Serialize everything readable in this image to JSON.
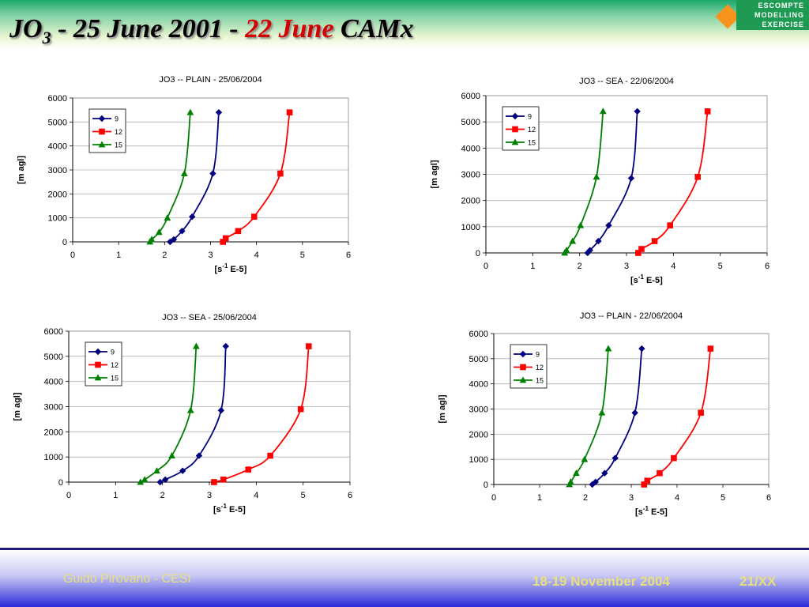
{
  "header": {
    "title_part1": "JO",
    "title_sub": "3",
    "title_part2": " - 25 June 2001  - ",
    "title_red": "22 June",
    "title_part3": " CAMx",
    "logo_lines": [
      "ESCOMPTE",
      "MODELLING",
      "EXERCISE"
    ]
  },
  "footer": {
    "author": "Guido Pirovano - CESI",
    "date": "18-19 November 2004",
    "page": "21/XX"
  },
  "colors": {
    "s9": "#00007f",
    "s12": "#ff0000",
    "s15": "#008000"
  },
  "chart_data": [
    {
      "type": "line",
      "title": "JO3  --  PLAIN  - 25/06/2004",
      "xlabel": "[s-1 E-5]",
      "ylabel": "[m agl]",
      "xlim": [
        0,
        6
      ],
      "ylim": [
        0,
        6000
      ],
      "xticks": [
        "0",
        "1",
        "2",
        "3",
        "4",
        "5",
        "6"
      ],
      "yticks": [
        "0",
        "1000",
        "2000",
        "3000",
        "4000",
        "5000",
        "6000"
      ],
      "grid": "horizontal",
      "legend": "top-left",
      "series": [
        {
          "name": "9",
          "marker": "diamond",
          "points": [
            [
              2.12,
              0
            ],
            [
              2.2,
              100
            ],
            [
              2.38,
              450
            ],
            [
              2.6,
              1050
            ],
            [
              3.05,
              2850
            ],
            [
              3.18,
              5400
            ]
          ]
        },
        {
          "name": "12",
          "marker": "square",
          "points": [
            [
              3.27,
              0
            ],
            [
              3.33,
              150
            ],
            [
              3.6,
              450
            ],
            [
              3.95,
              1050
            ],
            [
              4.52,
              2850
            ],
            [
              4.72,
              5400
            ]
          ]
        },
        {
          "name": "15",
          "marker": "triangle",
          "points": [
            [
              1.68,
              0
            ],
            [
              1.72,
              100
            ],
            [
              1.88,
              400
            ],
            [
              2.06,
              1000
            ],
            [
              2.43,
              2850
            ],
            [
              2.56,
              5400
            ]
          ]
        }
      ]
    },
    {
      "type": "line",
      "title": "JO3  --  SEA  - 22/06/2004",
      "xlabel": "[s-1 E-5]",
      "ylabel": "[m agl]",
      "xlim": [
        0,
        6
      ],
      "ylim": [
        0,
        6000
      ],
      "xticks": [
        "0",
        "1",
        "2",
        "3",
        "4",
        "5",
        "6"
      ],
      "yticks": [
        "0",
        "1000",
        "2000",
        "3000",
        "4000",
        "5000",
        "6000"
      ],
      "grid": "horizontal",
      "legend": "top-left",
      "series": [
        {
          "name": "9",
          "marker": "diamond",
          "points": [
            [
              2.17,
              0
            ],
            [
              2.22,
              100
            ],
            [
              2.4,
              450
            ],
            [
              2.62,
              1050
            ],
            [
              3.1,
              2850
            ],
            [
              3.23,
              5400
            ]
          ]
        },
        {
          "name": "12",
          "marker": "square",
          "points": [
            [
              3.25,
              0
            ],
            [
              3.32,
              150
            ],
            [
              3.6,
              450
            ],
            [
              3.93,
              1050
            ],
            [
              4.52,
              2900
            ],
            [
              4.73,
              5400
            ]
          ]
        },
        {
          "name": "15",
          "marker": "triangle",
          "points": [
            [
              1.68,
              0
            ],
            [
              1.72,
              100
            ],
            [
              1.85,
              450
            ],
            [
              2.02,
              1050
            ],
            [
              2.36,
              2900
            ],
            [
              2.5,
              5400
            ]
          ]
        }
      ]
    },
    {
      "type": "line",
      "title": "JO3  --  SEA  - 25/06/2004",
      "xlabel": "[s-1 E-5]",
      "ylabel": "[m agl]",
      "xlim": [
        0,
        6
      ],
      "ylim": [
        0,
        6000
      ],
      "xticks": [
        "0",
        "1",
        "2",
        "3",
        "4",
        "5",
        "6"
      ],
      "yticks": [
        "0",
        "1000",
        "2000",
        "3000",
        "4000",
        "5000",
        "6000"
      ],
      "grid": "horizontal",
      "legend": "top-left",
      "series": [
        {
          "name": "9",
          "marker": "diamond",
          "points": [
            [
              1.95,
              0
            ],
            [
              2.06,
              100
            ],
            [
              2.43,
              450
            ],
            [
              2.78,
              1050
            ],
            [
              3.25,
              2850
            ],
            [
              3.35,
              5400
            ]
          ]
        },
        {
          "name": "12",
          "marker": "square",
          "points": [
            [
              3.1,
              0
            ],
            [
              3.3,
              100
            ],
            [
              3.83,
              500
            ],
            [
              4.3,
              1050
            ],
            [
              4.95,
              2900
            ],
            [
              5.12,
              5400
            ]
          ]
        },
        {
          "name": "15",
          "marker": "triangle",
          "points": [
            [
              1.53,
              0
            ],
            [
              1.62,
              100
            ],
            [
              1.88,
              450
            ],
            [
              2.2,
              1050
            ],
            [
              2.6,
              2850
            ],
            [
              2.72,
              5400
            ]
          ]
        }
      ]
    },
    {
      "type": "line",
      "title": "JO3  --  PLAIN  - 22/06/2004",
      "xlabel": "[s-1 E-5]",
      "ylabel": "[m agl]",
      "xlim": [
        0,
        6
      ],
      "ylim": [
        0,
        6000
      ],
      "xticks": [
        "0",
        "1",
        "2",
        "3",
        "4",
        "5",
        "6"
      ],
      "yticks": [
        "0",
        "1000",
        "2000",
        "3000",
        "4000",
        "5000",
        "6000"
      ],
      "grid": "horizontal",
      "legend": "top-left",
      "series": [
        {
          "name": "9",
          "marker": "diamond",
          "points": [
            [
              2.15,
              0
            ],
            [
              2.22,
              100
            ],
            [
              2.42,
              450
            ],
            [
              2.65,
              1050
            ],
            [
              3.08,
              2850
            ],
            [
              3.23,
              5400
            ]
          ]
        },
        {
          "name": "12",
          "marker": "square",
          "points": [
            [
              3.28,
              0
            ],
            [
              3.35,
              150
            ],
            [
              3.62,
              450
            ],
            [
              3.93,
              1050
            ],
            [
              4.52,
              2850
            ],
            [
              4.73,
              5400
            ]
          ]
        },
        {
          "name": "15",
          "marker": "triangle",
          "points": [
            [
              1.65,
              0
            ],
            [
              1.68,
              100
            ],
            [
              1.8,
              450
            ],
            [
              1.98,
              1000
            ],
            [
              2.36,
              2850
            ],
            [
              2.5,
              5400
            ]
          ]
        }
      ]
    }
  ]
}
